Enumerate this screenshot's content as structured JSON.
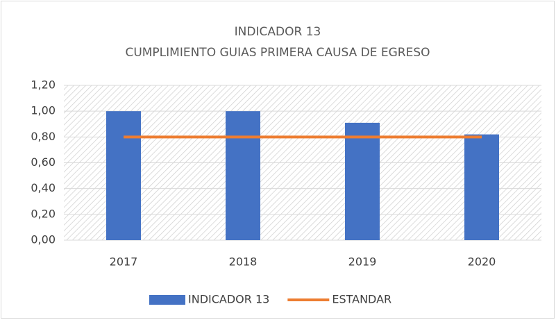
{
  "chart_data": {
    "type": "bar",
    "title": "INDICADOR 13",
    "subtitle": "CUMPLIMIENTO GUIAS PRIMERA CAUSA DE EGRESO",
    "categories": [
      "2017",
      "2018",
      "2019",
      "2020"
    ],
    "series": [
      {
        "name": "INDICADOR 13",
        "type": "bar",
        "color": "#4472c4",
        "values": [
          1.0,
          1.0,
          0.91,
          0.82
        ]
      },
      {
        "name": "ESTANDAR",
        "type": "line",
        "color": "#ed7d31",
        "values": [
          0.8,
          0.8,
          0.8,
          0.8
        ]
      }
    ],
    "ylim": [
      0,
      1.2
    ],
    "yticks": [
      {
        "value": 0,
        "label": "0,00"
      },
      {
        "value": 0.2,
        "label": "0,20"
      },
      {
        "value": 0.4,
        "label": "0,40"
      },
      {
        "value": 0.6,
        "label": "0,60"
      },
      {
        "value": 0.8,
        "label": "0,80"
      },
      {
        "value": 1.0,
        "label": "1,00"
      },
      {
        "value": 1.2,
        "label": "1,20"
      }
    ],
    "grid": true,
    "legend": "bottom"
  }
}
